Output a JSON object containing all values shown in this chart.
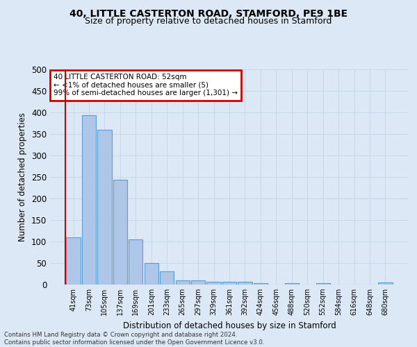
{
  "title": "40, LITTLE CASTERTON ROAD, STAMFORD, PE9 1BE",
  "subtitle": "Size of property relative to detached houses in Stamford",
  "xlabel": "Distribution of detached houses by size in Stamford",
  "ylabel": "Number of detached properties",
  "bar_labels": [
    "41sqm",
    "73sqm",
    "105sqm",
    "137sqm",
    "169sqm",
    "201sqm",
    "233sqm",
    "265sqm",
    "297sqm",
    "329sqm",
    "361sqm",
    "392sqm",
    "424sqm",
    "456sqm",
    "488sqm",
    "520sqm",
    "552sqm",
    "584sqm",
    "616sqm",
    "648sqm",
    "680sqm"
  ],
  "bar_values": [
    110,
    393,
    360,
    243,
    105,
    50,
    30,
    10,
    10,
    6,
    6,
    7,
    3,
    0,
    4,
    0,
    4,
    0,
    0,
    0,
    5
  ],
  "bar_color": "#aec6e8",
  "bar_edge_color": "#5a9fd4",
  "ylim": [
    0,
    500
  ],
  "yticks": [
    0,
    50,
    100,
    150,
    200,
    250,
    300,
    350,
    400,
    450,
    500
  ],
  "annotation_line1": "40 LITTLE CASTERTON ROAD: 52sqm",
  "annotation_line2": "← <1% of detached houses are smaller (5)",
  "annotation_line3": "99% of semi-detached houses are larger (1,301) →",
  "annotation_box_color": "#cc0000",
  "annotation_box_bg": "#ffffff",
  "vline_color": "#cc0000",
  "footer_line1": "Contains HM Land Registry data © Crown copyright and database right 2024.",
  "footer_line2": "Contains public sector information licensed under the Open Government Licence v3.0.",
  "background_color": "#dce8f5",
  "grid_color": "#c8d8ea"
}
